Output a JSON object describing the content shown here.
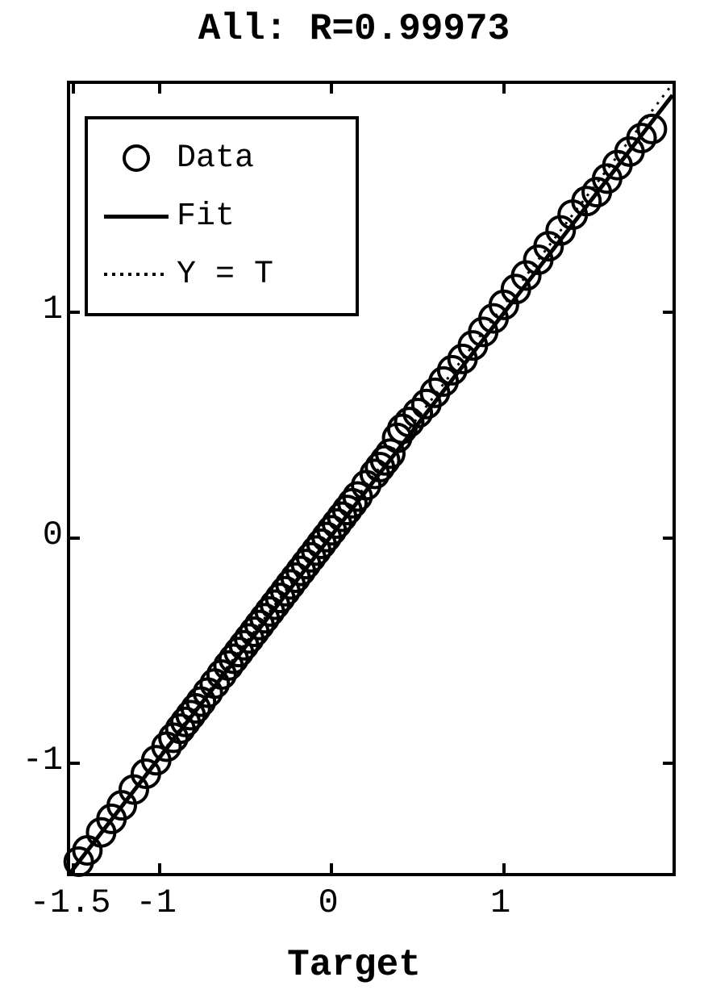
{
  "title": "All: R=0.99973",
  "xlabel": "Target",
  "chart": {
    "type": "scatter-regression",
    "xlim": [
      -1.5,
      2.0
    ],
    "ylim": [
      -1.5,
      2.0
    ],
    "xticks": [
      -1.5,
      -1,
      0,
      1
    ],
    "yticks": [
      -1,
      0,
      1
    ],
    "background_color": "#ffffff",
    "axis_color": "#000000",
    "axis_linewidth": 4,
    "title_fontsize": 46,
    "label_fontsize": 46,
    "tick_fontsize": 42,
    "font_family": "Courier New",
    "scatter": {
      "marker": "circle",
      "marker_size": 34,
      "marker_edge_color": "#000000",
      "marker_edge_width": 4,
      "marker_face_color": "none",
      "points": [
        [
          -1.45,
          -1.45
        ],
        [
          -1.4,
          -1.4
        ],
        [
          -1.32,
          -1.32
        ],
        [
          -1.26,
          -1.26
        ],
        [
          -1.2,
          -1.2
        ],
        [
          -1.13,
          -1.13
        ],
        [
          -1.06,
          -1.06
        ],
        [
          -1.0,
          -1.0
        ],
        [
          -0.94,
          -0.94
        ],
        [
          -0.9,
          -0.9
        ],
        [
          -0.86,
          -0.86
        ],
        [
          -0.83,
          -0.83
        ],
        [
          -0.8,
          -0.8
        ],
        [
          -0.77,
          -0.77
        ],
        [
          -0.74,
          -0.74
        ],
        [
          -0.7,
          -0.7
        ],
        [
          -0.66,
          -0.66
        ],
        [
          -0.62,
          -0.62
        ],
        [
          -0.58,
          -0.58
        ],
        [
          -0.55,
          -0.55
        ],
        [
          -0.52,
          -0.52
        ],
        [
          -0.49,
          -0.49
        ],
        [
          -0.46,
          -0.46
        ],
        [
          -0.43,
          -0.43
        ],
        [
          -0.4,
          -0.4
        ],
        [
          -0.37,
          -0.37
        ],
        [
          -0.34,
          -0.34
        ],
        [
          -0.31,
          -0.31
        ],
        [
          -0.28,
          -0.28
        ],
        [
          -0.25,
          -0.25
        ],
        [
          -0.22,
          -0.22
        ],
        [
          -0.19,
          -0.19
        ],
        [
          -0.16,
          -0.16
        ],
        [
          -0.13,
          -0.13
        ],
        [
          -0.1,
          -0.1
        ],
        [
          -0.07,
          -0.07
        ],
        [
          -0.04,
          -0.04
        ],
        [
          -0.01,
          -0.01
        ],
        [
          0.02,
          0.02
        ],
        [
          0.05,
          0.05
        ],
        [
          0.08,
          0.08
        ],
        [
          0.11,
          0.11
        ],
        [
          0.14,
          0.14
        ],
        [
          0.17,
          0.17
        ],
        [
          0.22,
          0.22
        ],
        [
          0.27,
          0.27
        ],
        [
          0.3,
          0.3
        ],
        [
          0.33,
          0.33
        ],
        [
          0.36,
          0.36
        ],
        [
          0.4,
          0.43
        ],
        [
          0.43,
          0.47
        ],
        [
          0.47,
          0.5
        ],
        [
          0.52,
          0.54
        ],
        [
          0.57,
          0.58
        ],
        [
          0.62,
          0.63
        ],
        [
          0.67,
          0.68
        ],
        [
          0.72,
          0.73
        ],
        [
          0.78,
          0.78
        ],
        [
          0.84,
          0.84
        ],
        [
          0.9,
          0.9
        ],
        [
          0.96,
          0.96
        ],
        [
          1.02,
          1.02
        ],
        [
          1.09,
          1.09
        ],
        [
          1.15,
          1.15
        ],
        [
          1.22,
          1.22
        ],
        [
          1.28,
          1.28
        ],
        [
          1.35,
          1.35
        ],
        [
          1.42,
          1.42
        ],
        [
          1.5,
          1.48
        ],
        [
          1.56,
          1.52
        ],
        [
          1.62,
          1.58
        ],
        [
          1.68,
          1.64
        ],
        [
          1.75,
          1.7
        ],
        [
          1.82,
          1.76
        ],
        [
          1.88,
          1.8
        ]
      ]
    },
    "fit_line": {
      "color": "#000000",
      "width": 5,
      "dash": "solid",
      "x1": -1.5,
      "y1": -1.5,
      "x2": 2.0,
      "y2": 1.95
    },
    "identity_line": {
      "color": "#000000",
      "width": 3,
      "dash": "dotted",
      "x1": -1.5,
      "y1": -1.5,
      "x2": 2.0,
      "y2": 2.0
    }
  },
  "legend": {
    "position": "upper-left",
    "border_color": "#000000",
    "border_width": 4,
    "background": "#ffffff",
    "items": [
      {
        "symbol": "circle",
        "label": "Data"
      },
      {
        "symbol": "line",
        "label": "Fit"
      },
      {
        "symbol": "dotted",
        "label": "Y = T"
      }
    ]
  }
}
